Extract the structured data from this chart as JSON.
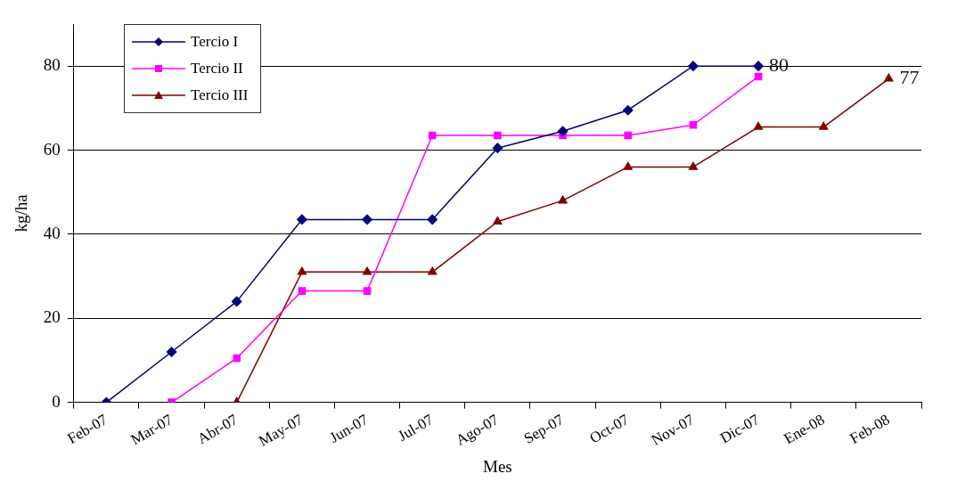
{
  "chart_data": {
    "type": "line",
    "xlabel": "Mes",
    "ylabel": "kg/ha",
    "categories": [
      "Feb-07",
      "Mar-07",
      "Abr-07",
      "May-07",
      "Jun-07",
      "Jul-07",
      "Ago-07",
      "Sep-07",
      "Oct-07",
      "Nov-07",
      "Dic-07",
      "Ene-08",
      "Feb-08"
    ],
    "series": [
      {
        "name": "Tercio I",
        "color": "#000080",
        "marker": "diamond",
        "values": [
          0,
          12,
          24,
          43.5,
          43.5,
          43.5,
          60.5,
          64.5,
          69.5,
          80,
          80,
          null,
          null
        ],
        "value_labels": [
          null,
          null,
          null,
          null,
          null,
          null,
          null,
          null,
          null,
          null,
          "80",
          null,
          null
        ]
      },
      {
        "name": "Tercio II",
        "color": "#ff00ff",
        "marker": "square",
        "values": [
          null,
          0,
          10.5,
          26.5,
          26.5,
          63.5,
          63.5,
          63.5,
          63.5,
          66,
          77.5,
          null,
          null
        ]
      },
      {
        "name": "Tercio III",
        "color": "#800000",
        "marker": "triangle",
        "values": [
          null,
          null,
          0,
          31,
          31,
          31,
          43,
          48,
          56,
          56,
          65.5,
          65.5,
          77
        ],
        "value_labels": [
          null,
          null,
          null,
          null,
          null,
          null,
          null,
          null,
          null,
          null,
          null,
          null,
          "77"
        ]
      }
    ],
    "ylim": [
      0,
      90
    ],
    "yticks": [
      0,
      20,
      40,
      60,
      80
    ],
    "grid": "y",
    "legend": "top left",
    "line_style": "solid"
  }
}
